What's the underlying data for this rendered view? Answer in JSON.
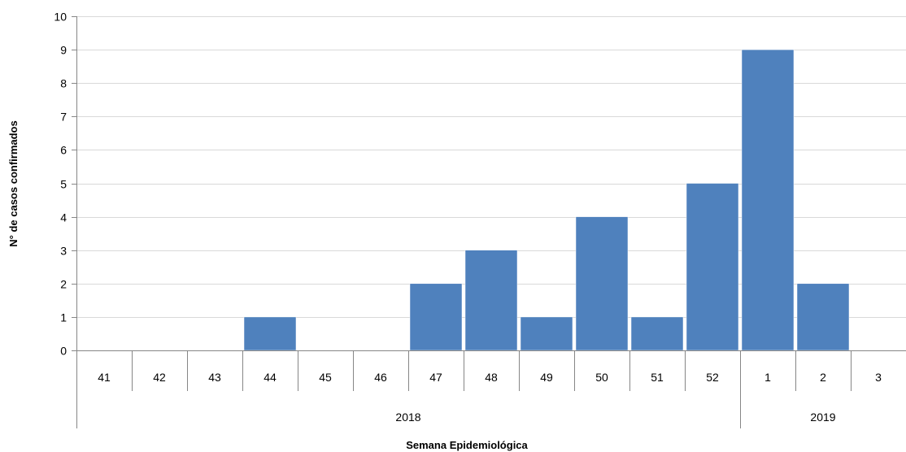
{
  "chart_data": {
    "type": "bar",
    "categories": [
      "41",
      "42",
      "43",
      "44",
      "45",
      "46",
      "47",
      "48",
      "49",
      "50",
      "51",
      "52",
      "1",
      "2",
      "3"
    ],
    "groups": [
      {
        "label": "2018",
        "count": 12
      },
      {
        "label": "2019",
        "count": 3
      }
    ],
    "values": [
      0,
      0,
      0,
      1,
      0,
      0,
      2,
      3,
      1,
      4,
      1,
      5,
      9,
      2,
      0
    ],
    "ylabel": "N° de casos confirmados",
    "xlabel": "Semana Epidemiológica",
    "ylim": [
      0,
      10
    ],
    "yticks": [
      0,
      1,
      2,
      3,
      4,
      5,
      6,
      7,
      8,
      9,
      10
    ],
    "bar_color": "#4f81bd",
    "grid": true
  }
}
